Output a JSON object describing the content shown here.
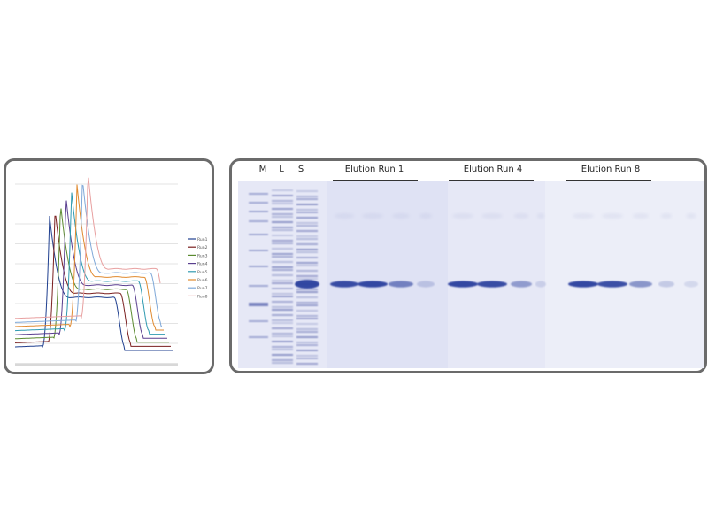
{
  "chart_data": {
    "type": "line",
    "title": "",
    "xlabel": "",
    "ylabel": "",
    "grid": true,
    "legend_position": "right",
    "series": [
      {
        "name": "Run1",
        "color": "#1f3f8f"
      },
      {
        "name": "Run2",
        "color": "#7a1f1f"
      },
      {
        "name": "Run3",
        "color": "#5b8a2f"
      },
      {
        "name": "Run4",
        "color": "#5a3f8f"
      },
      {
        "name": "Run5",
        "color": "#2f9ab0"
      },
      {
        "name": "Run6",
        "color": "#e08a2f"
      },
      {
        "name": "Run7",
        "color": "#7fa8d8"
      },
      {
        "name": "Run8",
        "color": "#e8a0a0"
      }
    ]
  },
  "gel": {
    "lane_labels": [
      "M",
      "L",
      "S"
    ],
    "runs": [
      {
        "label": "Elution Run 1"
      },
      {
        "label": "Elution Run 4"
      },
      {
        "label": "Elution Run 8"
      }
    ],
    "colors": {
      "background": "#e3e5f5",
      "band": "#2b3f9e"
    }
  }
}
